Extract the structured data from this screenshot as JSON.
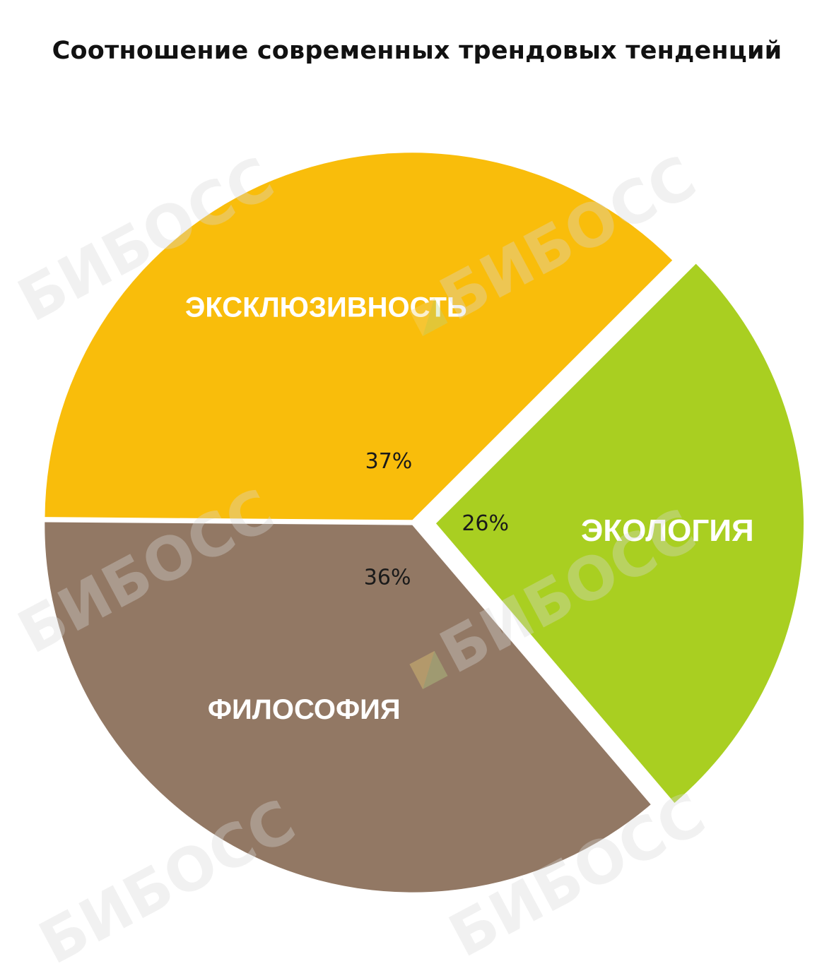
{
  "title": "Соотношение современных трендовых тенденций",
  "watermark": "БИБОСС",
  "chart_data": {
    "type": "pie",
    "title": "Соотношение современных трендовых тенденций",
    "start": "upper-right, clockwise",
    "slices": [
      {
        "name": "ЭКОЛОГИЯ",
        "value": 26,
        "label": "26%",
        "color": "#a9cf21",
        "exploded": true
      },
      {
        "name": "ФИЛОСОФИЯ",
        "value": 36,
        "label": "36%",
        "color": "#927864",
        "exploded": false
      },
      {
        "name": "ЭКСКЛЮЗИВНОСТЬ",
        "value": 37,
        "label": "37%",
        "color": "#f9bd0b",
        "exploded": false
      }
    ]
  }
}
